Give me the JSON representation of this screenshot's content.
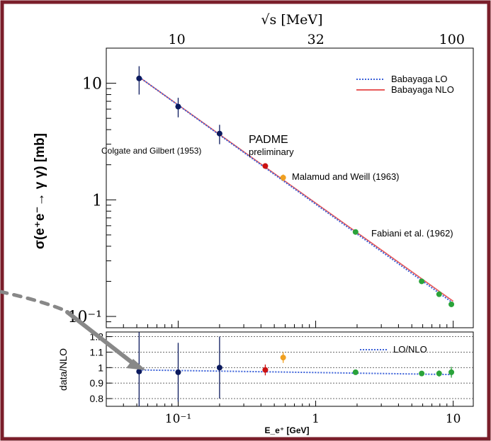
{
  "chart_data": [
    {
      "type": "scatter",
      "panel": "main",
      "top_axis_label": "√s [MeV]",
      "top_ticks": [
        "10",
        "32",
        "100"
      ],
      "top_tick_values": [
        10,
        32,
        100
      ],
      "ylabel": "σ(e⁺e⁻→ γ γ) [mb]",
      "yscale": "log",
      "xscale": "log",
      "xlim": [
        0.03,
        14
      ],
      "ylim": [
        0.08,
        20
      ],
      "yticks": [
        0.1,
        1,
        10
      ],
      "ytick_labels": [
        "10⁻¹",
        "1",
        "10"
      ],
      "series": [
        {
          "name": "Colgate and Gilbert (1953)",
          "color": "#0b1a5e",
          "x": [
            0.052,
            0.1,
            0.2
          ],
          "y": [
            11.0,
            6.3,
            3.7
          ],
          "yerr": [
            3.0,
            1.2,
            0.7
          ]
        },
        {
          "name": "PADME preliminary",
          "color": "#cc1111",
          "x": [
            0.43
          ],
          "y": [
            1.95
          ],
          "yerr": [
            0.08
          ]
        },
        {
          "name": "Malamud and Weill (1963)",
          "color": "#f0a020",
          "x": [
            0.58
          ],
          "y": [
            1.55
          ],
          "yerr": [
            0.1
          ]
        },
        {
          "name": "Fabiani et al. (1962)",
          "color": "#2aa33a",
          "x": [
            1.95,
            5.9,
            7.9,
            9.7
          ],
          "y": [
            0.53,
            0.2,
            0.155,
            0.127
          ],
          "yerr": [
            0.01,
            0.006,
            0.005,
            0.004
          ]
        }
      ],
      "annotations": {
        "colgate": "Colgate and Gilbert (1953)",
        "padme_title": "PADME",
        "padme_sub": "preliminary",
        "malamud": "Malamud and Weill (1963)",
        "fabiani": "Fabiani et al. (1962)"
      },
      "curves": [
        {
          "name": "Babayaga LO",
          "color": "#3a60d8",
          "style": "dotted",
          "x": [
            0.052,
            10
          ],
          "y": [
            11.3,
            0.13
          ]
        },
        {
          "name": "Babayaga NLO",
          "color": "#e85a5a",
          "style": "solid",
          "x": [
            0.052,
            10
          ],
          "y": [
            11.3,
            0.135
          ]
        }
      ],
      "legend": [
        "Babayaga LO",
        "Babayaga NLO"
      ],
      "legend_position": "top-right"
    },
    {
      "type": "scatter",
      "panel": "ratio",
      "xlabel": "E_e⁺ [GeV]",
      "ylabel": "data/NLO",
      "xscale": "log",
      "xlim": [
        0.03,
        14
      ],
      "ylim": [
        0.75,
        1.23
      ],
      "yticks": [
        0.8,
        0.9,
        1.0,
        1.1,
        1.2
      ],
      "ytick_labels": [
        "0.8",
        "0.9",
        "1",
        "1.1",
        "1.2"
      ],
      "xticks": [
        0.1,
        1,
        10
      ],
      "xtick_labels": [
        "10⁻¹",
        "1",
        "10"
      ],
      "grid": true,
      "legend": [
        "LO/NLO"
      ],
      "legend_position": "top-right",
      "series": [
        {
          "name": "Colgate and Gilbert (1953)",
          "color": "#0b1a5e",
          "x": [
            0.052,
            0.1,
            0.2
          ],
          "y": [
            0.975,
            0.97,
            1.0
          ],
          "yerr": [
            0.26,
            0.19,
            0.2
          ]
        },
        {
          "name": "PADME preliminary",
          "color": "#cc1111",
          "x": [
            0.43
          ],
          "y": [
            0.985
          ],
          "yerr": [
            0.035
          ]
        },
        {
          "name": "Malamud and Weill (1963)",
          "color": "#f0a020",
          "x": [
            0.58
          ],
          "y": [
            1.065
          ],
          "yerr": [
            0.035
          ]
        },
        {
          "name": "Fabiani et al. (1962)",
          "color": "#2aa33a",
          "x": [
            1.95,
            5.9,
            7.9,
            9.7
          ],
          "y": [
            0.97,
            0.962,
            0.962,
            0.97
          ],
          "yerr": [
            0.01,
            0.012,
            0.02,
            0.035
          ]
        }
      ],
      "curves": [
        {
          "name": "LO/NLO",
          "color": "#3a60d8",
          "style": "dotted",
          "x": [
            0.052,
            10
          ],
          "y": [
            0.985,
            0.955
          ]
        }
      ]
    }
  ]
}
